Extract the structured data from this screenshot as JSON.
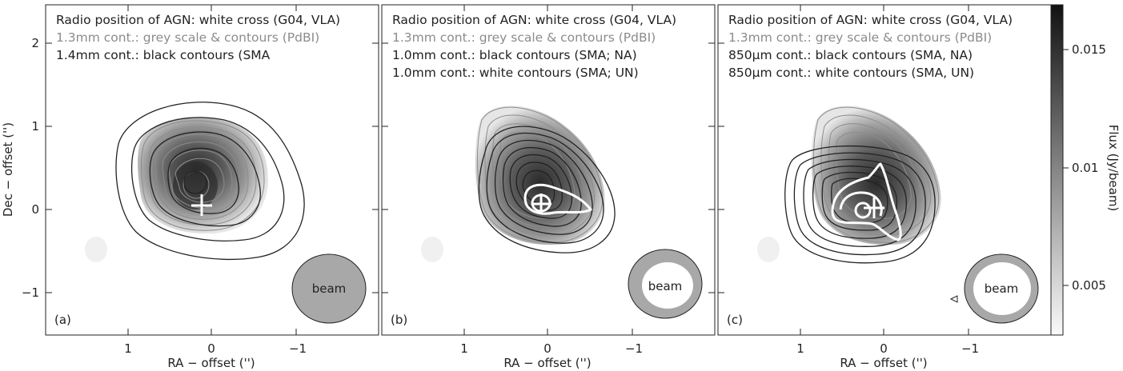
{
  "panels": [
    {
      "id": "a",
      "label": "(a)",
      "legend": [
        {
          "text": "Radio position of AGN: white cross (G04, VLA)",
          "color": "#222222"
        },
        {
          "text": "1.3mm cont.: grey scale & contours (PdBI)",
          "color": "#8c8c8c"
        },
        {
          "text": "1.4mm cont.: black contours (SMA",
          "color": "#222222"
        }
      ],
      "beam_label": "beam"
    },
    {
      "id": "b",
      "label": "(b)",
      "legend": [
        {
          "text": "Radio position of AGN: white cross (G04, VLA)",
          "color": "#222222"
        },
        {
          "text": "1.3mm cont.: grey scale & contours (PdBI)",
          "color": "#8c8c8c"
        },
        {
          "text": "1.0mm cont.: black contours (SMA; NA)",
          "color": "#222222"
        },
        {
          "text": "1.0mm cont.: white contours (SMA; UN)",
          "color": "#222222"
        }
      ],
      "beam_label": "beam"
    },
    {
      "id": "c",
      "label": "(c)",
      "legend": [
        {
          "text": "Radio position of AGN: white cross (G04, VLA)",
          "color": "#222222"
        },
        {
          "text": "1.3mm cont.: grey scale & contours (PdBI)",
          "color": "#8c8c8c"
        },
        {
          "text": "850μm cont.: black contours (SMA, NA)",
          "color": "#222222"
        },
        {
          "text": "850μm cont.: white contours (SMA, UN)",
          "color": "#222222"
        }
      ],
      "beam_label": "beam"
    }
  ],
  "x_axis": {
    "label": "RA − offset ('')",
    "ticks": [
      "1",
      "0",
      "−1"
    ]
  },
  "y_axis": {
    "label": "Dec − offset ('')",
    "ticks": [
      "2",
      "1",
      "0",
      "−1"
    ]
  },
  "colorbar": {
    "label": "Flux (Jy/beam)",
    "ticks": [
      "0.015",
      "0.01",
      "0.005"
    ]
  }
}
